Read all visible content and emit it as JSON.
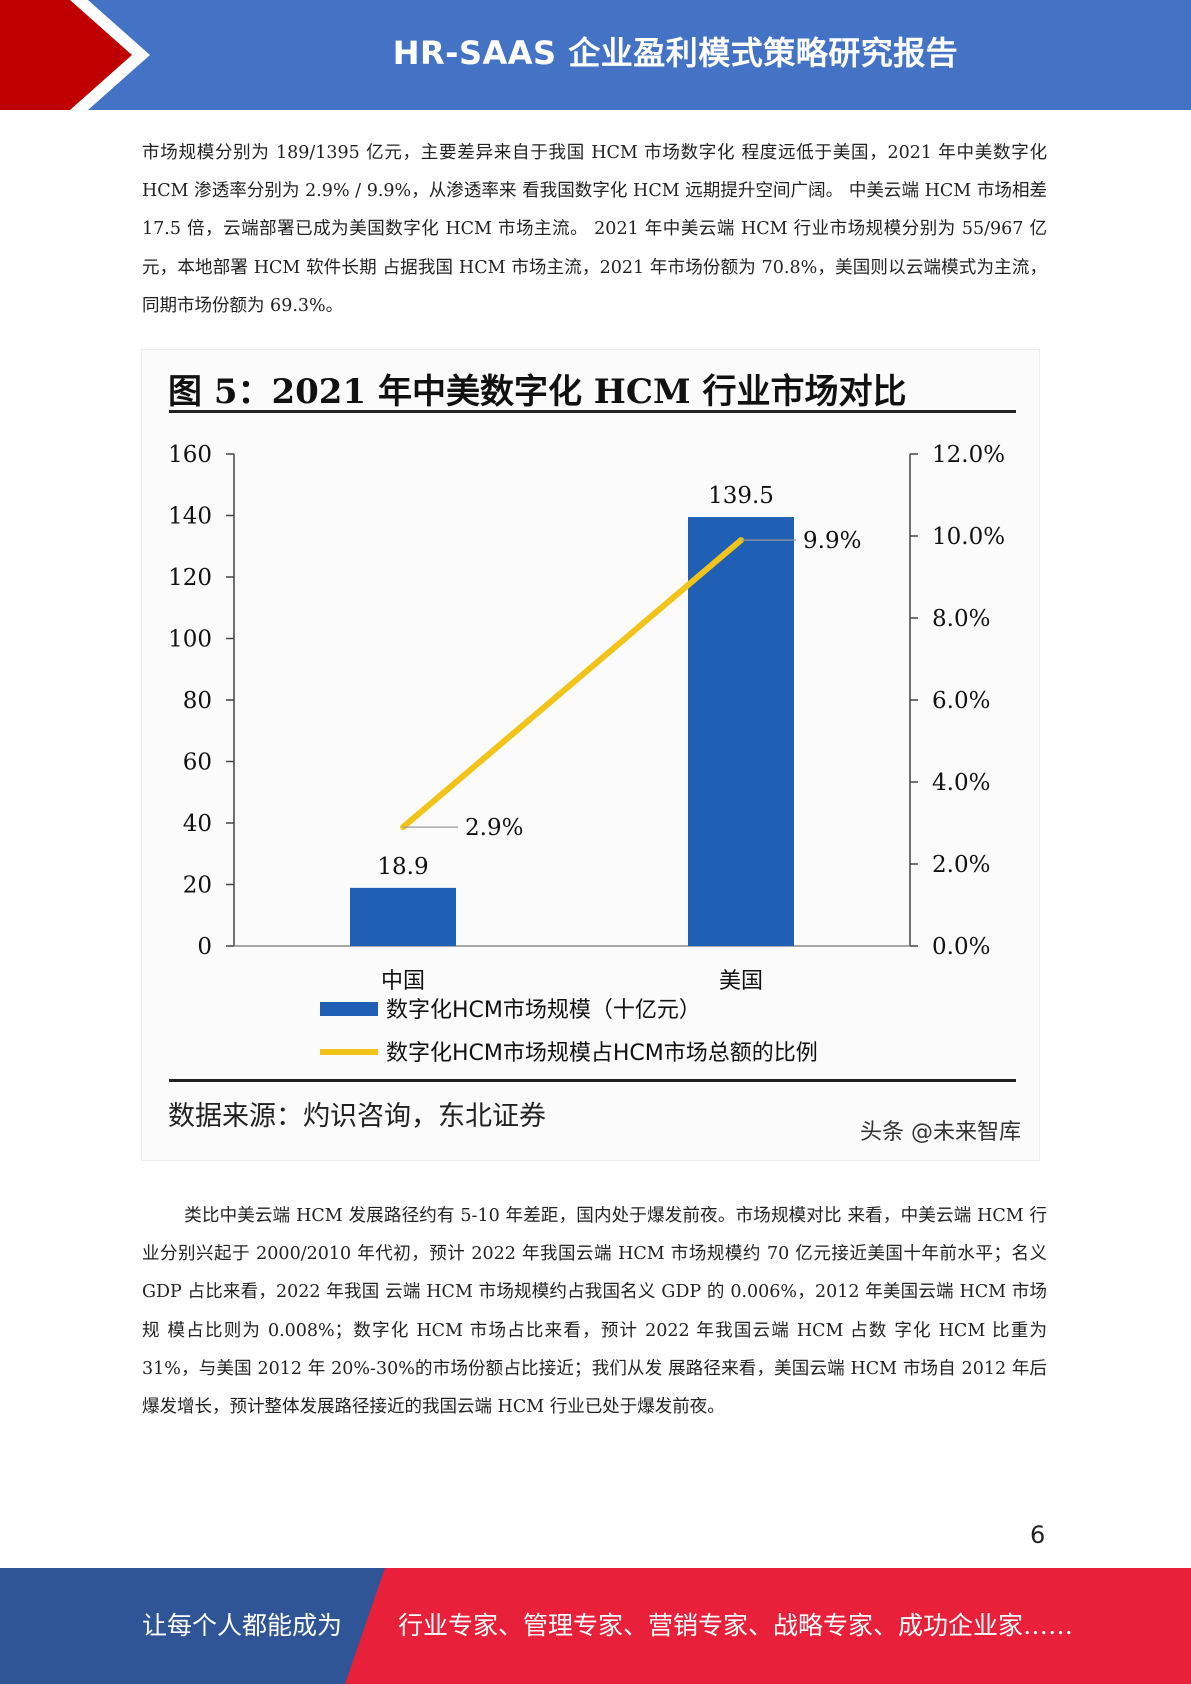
{
  "header": {
    "title": "HR-SAAS 企业盈利模式策略研究报告"
  },
  "paragraphs": {
    "intro": "市场规模分别为 189/1395 亿元，主要差异来自于我国 HCM 市场数字化 程度远低于美国，2021 年中美数字化 HCM 渗透率分别为 2.9% / 9.9%，从渗透率来 看我国数字化 HCM 远期提升空间广阔。 中美云端 HCM 市场相差 17.5 倍，云端部署已成为美国数字化 HCM 市场主流。 2021 年中美云端 HCM 行业市场规模分别为 55/967 亿元，本地部署 HCM 软件长期 占据我国 HCM 市场主流，2021 年市场份额为 70.8%，美国则以云端模式为主流， 同期市场份额为 69.3%。",
    "analysis": "类比中美云端 HCM 发展路径约有 5-10 年差距，国内处于爆发前夜。市场规模对比 来看，中美云端 HCM 行业分别兴起于 2000/2010 年代初，预计 2022 年我国云端 HCM 市场规模约 70 亿元接近美国十年前水平；名义 GDP 占比来看，2022 年我国 云端 HCM 市场规模约占我国名义 GDP 的 0.006%，2012 年美国云端 HCM 市场规 模占比则为 0.008%；数字化 HCM 市场占比来看，预计 2022 年我国云端 HCM 占数 字化 HCM 比重为 31%，与美国 2012 年 20%-30%的市场份额占比接近；我们从发 展路径来看，美国云端 HCM 市场自 2012 年后爆发增长，预计整体发展路径接近的我国云端 HCM 行业已处于爆发前夜。"
  },
  "figure": {
    "title": "图  5：2021 年中美数字化 HCM 行业市场对比",
    "source": "数据来源：灼识咨询，东北证券",
    "watermark": "头条 @未来智库"
  },
  "chart_data": {
    "type": "bar",
    "categories": [
      "中国",
      "美国"
    ],
    "series": [
      {
        "name": "数字化HCM市场规模（十亿元）",
        "type": "bar",
        "axis": "left",
        "color": "#1f5fb4",
        "values": [
          18.9,
          139.5
        ],
        "labels": [
          "18.9",
          "139.5"
        ]
      },
      {
        "name": "数字化HCM市场规模占HCM市场总额的比例",
        "type": "line",
        "axis": "right",
        "color": "#f2c318",
        "values": [
          2.9,
          9.9
        ],
        "labels": [
          "2.9%",
          "9.9%"
        ]
      }
    ],
    "ylim": [
      0,
      160
    ],
    "yticks": [
      "0",
      "20",
      "40",
      "60",
      "80",
      "100",
      "120",
      "140",
      "160"
    ],
    "y2lim": [
      0,
      12
    ],
    "y2ticks": [
      "0.0%",
      "2.0%",
      "4.0%",
      "6.0%",
      "8.0%",
      "10.0%",
      "12.0%"
    ],
    "legend_position": "bottom",
    "grid": false
  },
  "page_number": "6",
  "footer": {
    "left": "让每个人都能成为",
    "right": "行业专家、管理专家、营销专家、战略专家、成功企业家……"
  },
  "colors": {
    "header_blue": "#4472c4",
    "accent_red": "#c00000",
    "footer_red": "#e8203a",
    "footer_blue": "#2f5597"
  }
}
